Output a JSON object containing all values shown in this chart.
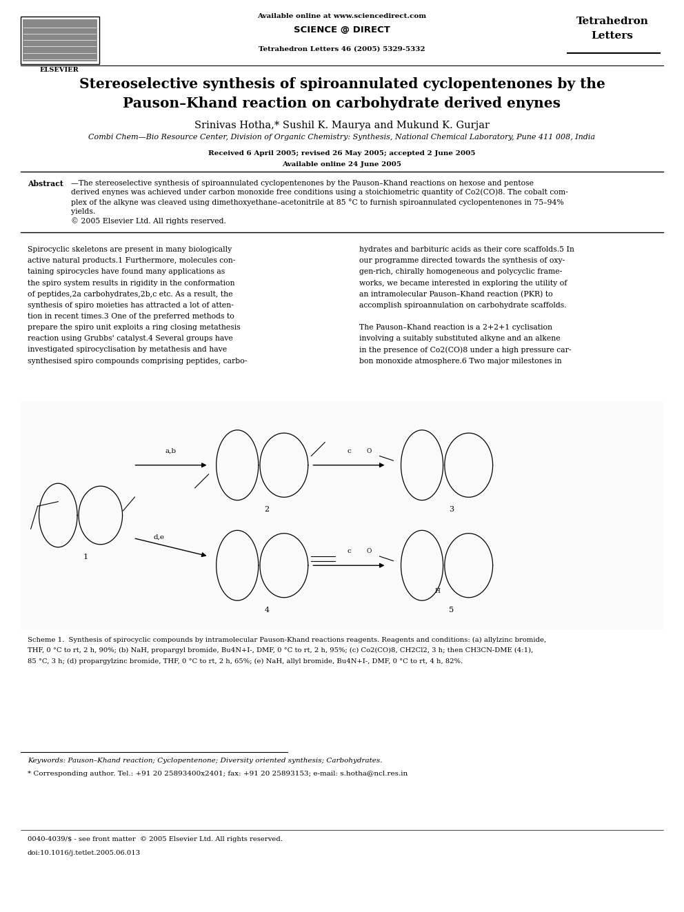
{
  "background_color": "#ffffff",
  "page_width": 9.92,
  "page_height": 13.23,
  "header": {
    "elsevier_text": "ELSEVIER",
    "available_online": "Available online at www.sciencedirect.com",
    "sciencedirect": "SCIENCE @ DIRECT",
    "journal_name_line1": "Tetrahedron",
    "journal_name_line2": "Letters",
    "journal_ref": "Tetrahedron Letters 46 (2005) 5329-5332"
  },
  "title": "Stereoselective synthesis of spiroannulated cyclopentenones by the\nPauson–Khand reaction on carbohydrate derived enynes",
  "authors": "Srinivas Hotha,* Sushil K. Maurya and Mukund K. Gurjar",
  "affiliation": "Combi Chem—Bio Resource Center, Division of Organic Chemistry: Synthesis, National Chemical Laboratory, Pune 411 008, India",
  "received": "Received 6 April 2005; revised 26 May 2005; accepted 2 June 2005",
  "available": "Available online 24 June 2005",
  "abstract_label": "Abstract",
  "abstract_text": "The stereoselective synthesis of spiroannulated cyclopentenones by the Pauson–Khand reactions on hexose and pentose\nderived enynes was achieved under carbon monoxide free conditions using a stoichiometric quantity of Co2(CO)8. The cobalt com-\nplex of the alkyne was cleaved using dimethoxyethane–acetonitrile at 85 °C to furnish spiroannulated cyclopentenones in 75–94%\nyields.\n© 2005 Elsevier Ltd. All rights reserved.",
  "body_left_lines": [
    "Spirocyclic skeletons are present in many biologically",
    "active natural products.1 Furthermore, molecules con-",
    "taining spirocycles have found many applications as",
    "the spiro system results in rigidity in the conformation",
    "of peptides,2a carbohydrates,2b,c etc. As a result, the",
    "synthesis of spiro moieties has attracted a lot of atten-",
    "tion in recent times.3 One of the preferred methods to",
    "prepare the spiro unit exploits a ring closing metathesis",
    "reaction using Grubbs' catalyst.4 Several groups have",
    "investigated spirocyclisation by metathesis and have",
    "synthesised spiro compounds comprising peptides, carbo-"
  ],
  "body_right_lines": [
    "hydrates and barbituric acids as their core scaffolds.5 In",
    "our programme directed towards the synthesis of oxy-",
    "gen-rich, chirally homogeneous and polycyclic frame-",
    "works, we became interested in exploring the utility of",
    "an intramolecular Pauson–Khand reaction (PKR) to",
    "accomplish spiroannulation on carbohydrate scaffolds.",
    "",
    "The Pauson–Khand reaction is a 2+2+1 cyclisation",
    "involving a suitably substituted alkyne and an alkene",
    "in the presence of Co2(CO)8 under a high pressure car-",
    "bon monoxide atmosphere.6 Two major milestones in"
  ],
  "scheme_caption_lines": [
    "Scheme 1.  Synthesis of spirocyclic compounds by intramolecular Pauson-Khand reactions reagents. Reagents and conditions: (a) allylzinc bromide,",
    "THF, 0 °C to rt, 2 h, 90%; (b) NaH, propargyl bromide, Bu4N+I-, DMF, 0 °C to rt, 2 h, 95%; (c) Co2(CO)8, CH2Cl2, 3 h; then CH3CN-DME (4:1),",
    "85 °C, 3 h; (d) propargylzinc bromide, THF, 0 °C to rt, 2 h, 65%; (e) NaH, allyl bromide, Bu4N+I-, DMF, 0 °C to rt, 4 h, 82%."
  ],
  "keywords": "Keywords: Pauson–Khand reaction; Cyclopentenone; Diversity oriented synthesis; Carbohydrates.",
  "corresponding": "* Corresponding author. Tel.: +91 20 25893400x2401; fax: +91 20 25893153; e-mail: s.hotha@ncl.res.in",
  "issn_line": "0040-4039/$ - see front matter  © 2005 Elsevier Ltd. All rights reserved.",
  "doi_line": "doi:10.1016/j.tetlet.2005.06.013"
}
